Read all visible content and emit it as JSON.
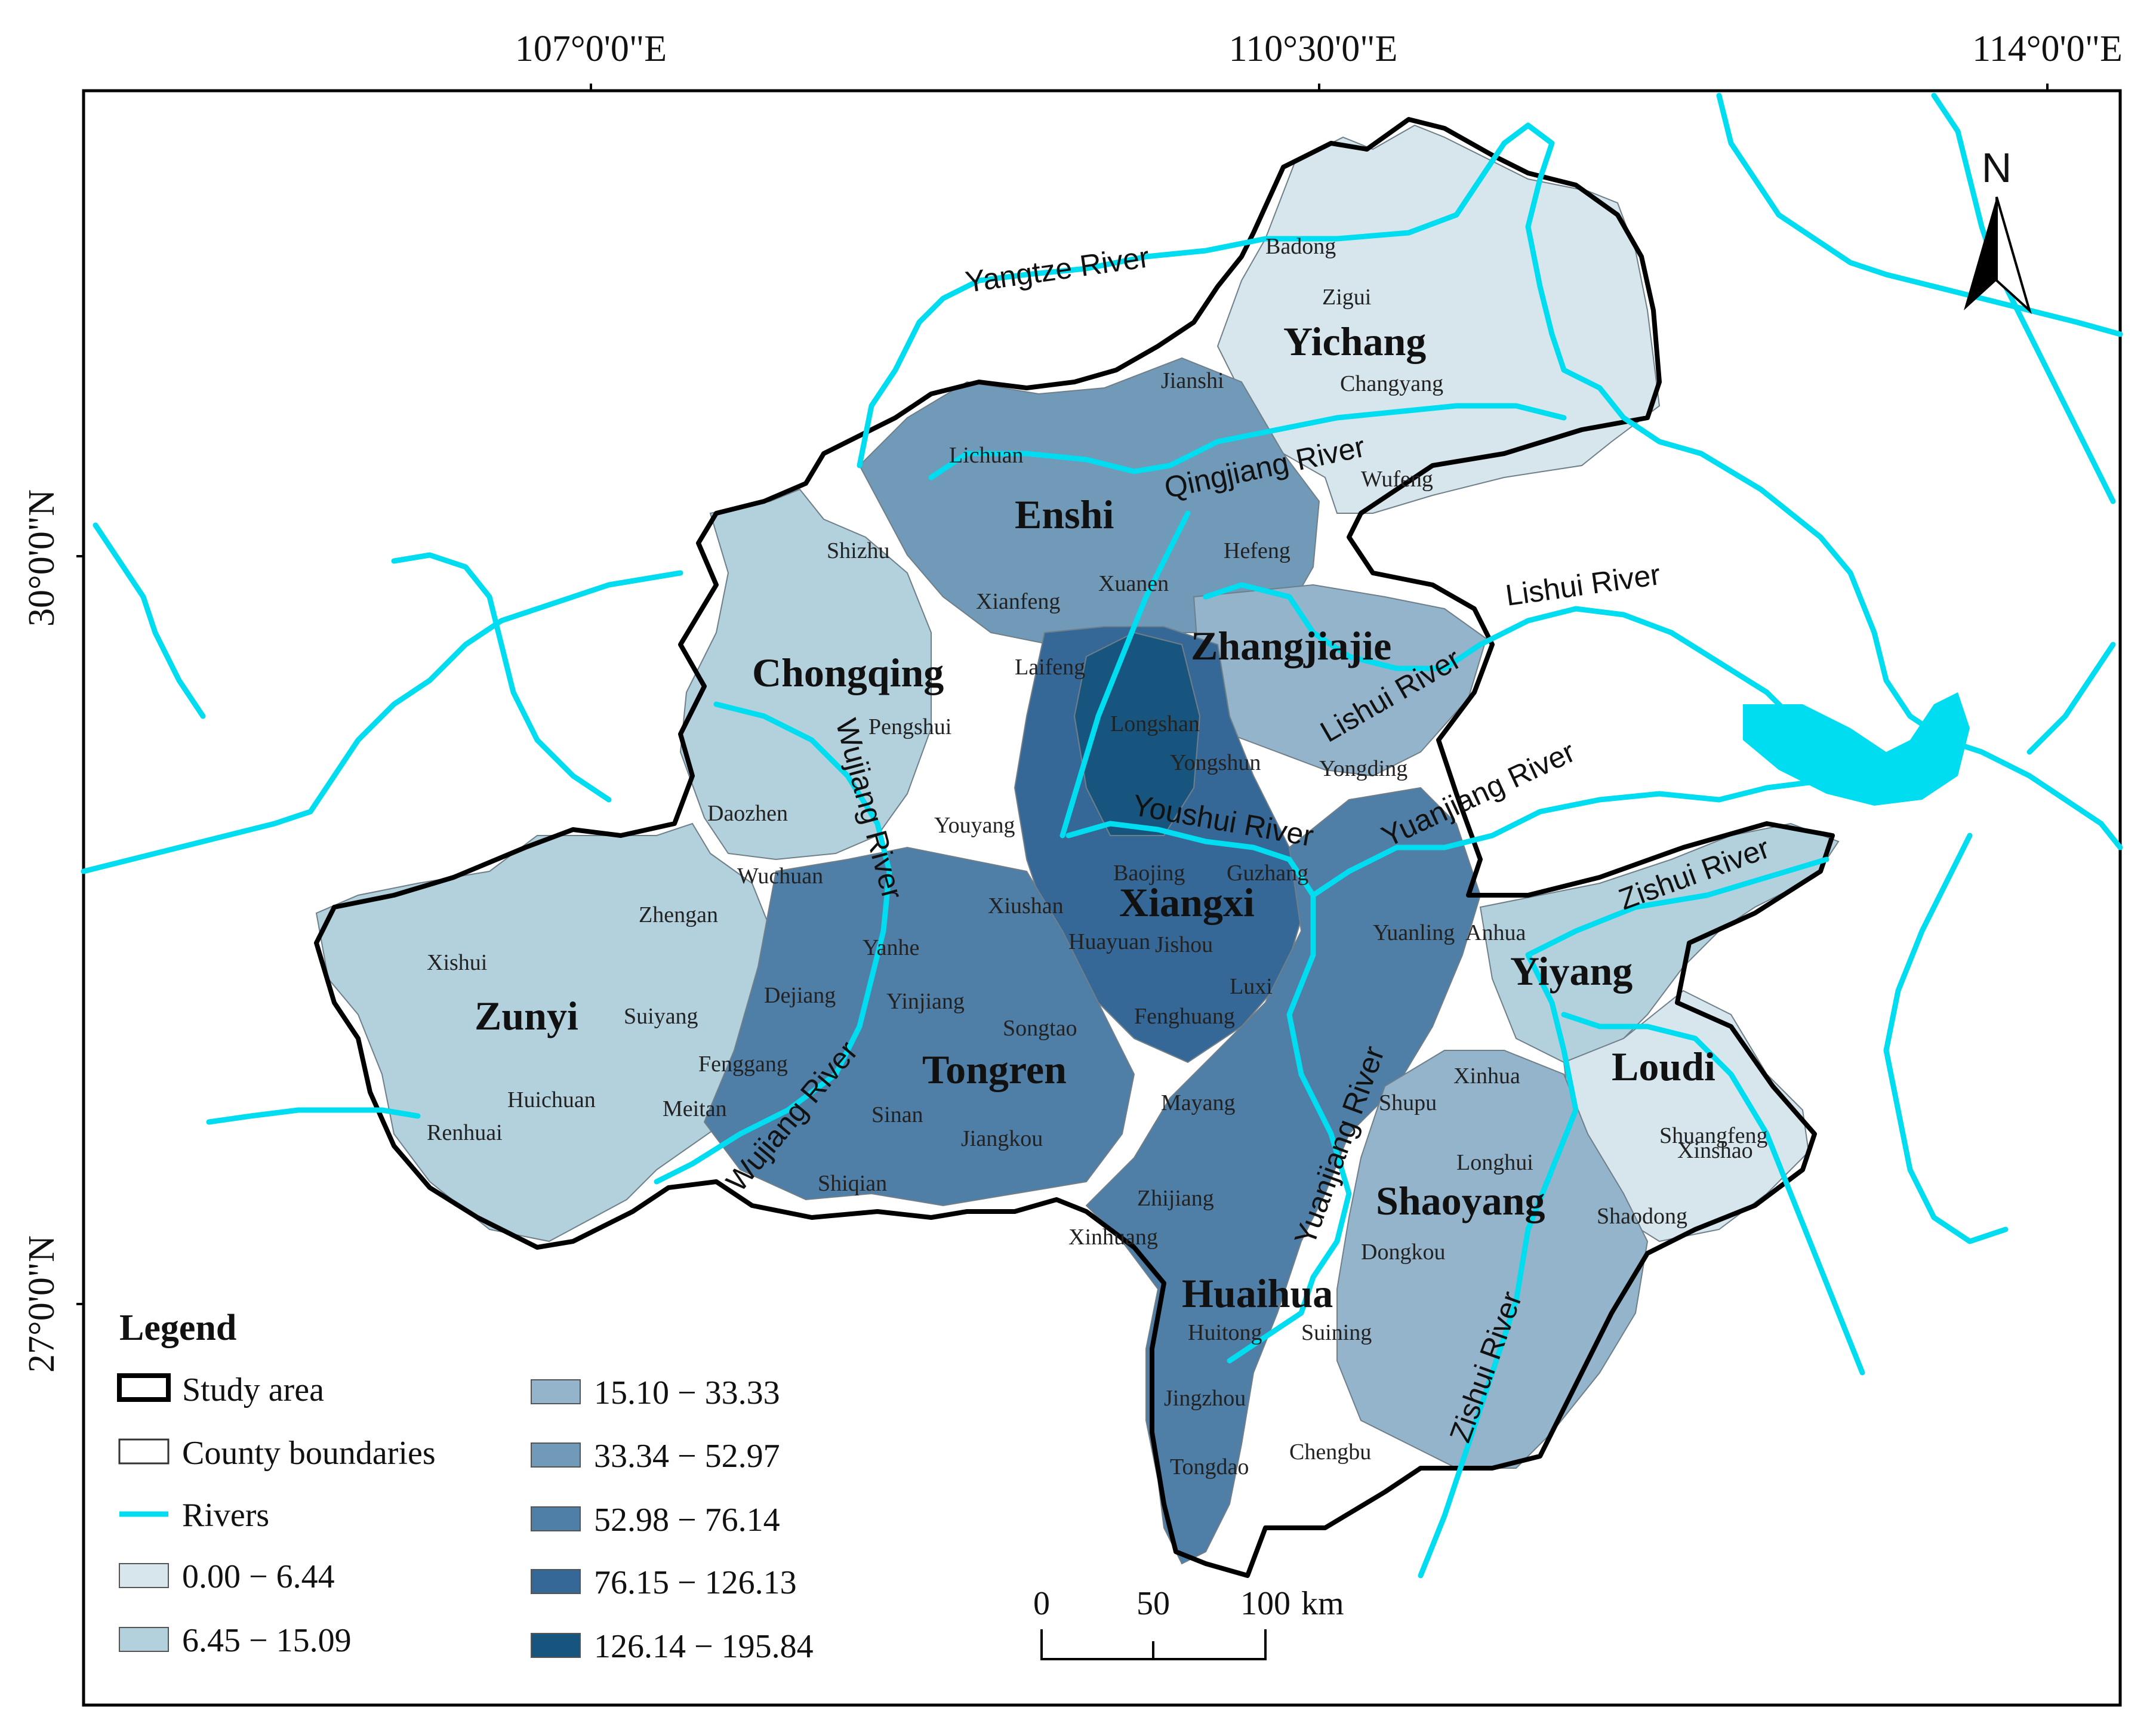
{
  "graticule": {
    "lon": [
      "107°0'0\"E",
      "110°30'0\"E",
      "114°0'0\"E"
    ],
    "lat": [
      "30°0'0\"N",
      "27°0'0\"N"
    ]
  },
  "north_label": "N",
  "cities": [
    {
      "name": "Yichang"
    },
    {
      "name": "Enshi"
    },
    {
      "name": "Zhangjiajie"
    },
    {
      "name": "Chongqing"
    },
    {
      "name": "Xiangxi"
    },
    {
      "name": "Zunyi"
    },
    {
      "name": "Tongren"
    },
    {
      "name": "Yiyang"
    },
    {
      "name": "Loudi"
    },
    {
      "name": "Shaoyang"
    },
    {
      "name": "Huaihua"
    }
  ],
  "counties": [
    "Badong",
    "Zigui",
    "Jianshi",
    "Changyang",
    "Lichuan",
    "Wufeng",
    "Shizhu",
    "Hefeng",
    "Xianfeng",
    "Xuanen",
    "Laifeng",
    "Longshan",
    "Pengshui",
    "Yongshun",
    "Yongding",
    "Daozhen",
    "Youyang",
    "Baojing",
    "Guzhang",
    "Wuchuan",
    "Zhengan",
    "Xiushan",
    "Huayuan",
    "Jishou",
    "Yuanling",
    "Anhua",
    "Xishui",
    "Yanhe",
    "Luxi",
    "Dejiang",
    "Yinjiang",
    "Suiyang",
    "Songtao",
    "Fenghuang",
    "Fenggang",
    "Xinhua",
    "Huichuan",
    "Meitan",
    "Mayang",
    "Shupu",
    "Renhuai",
    "Sinan",
    "Jiangkou",
    "Xinshao",
    "Shuangfeng",
    "Longhui",
    "Shiqian",
    "Zhijiang",
    "Shaodong",
    "Xinhuang",
    "Dongkou",
    "Huitong",
    "Suining",
    "Jingzhou",
    "Chengbu",
    "Tongdao"
  ],
  "rivers": [
    "Yangtze River",
    "Qingjiang River",
    "Lishui River",
    "Lishui River",
    "Youshui River",
    "Yuanjiang River",
    "Zishui River",
    "Wujiang River",
    "Wujiang River",
    "Yuanjiang River",
    "Zishui River"
  ],
  "legend": {
    "title": "Legend",
    "items": [
      "Study area",
      "County boundaries",
      "Rivers"
    ],
    "classes": [
      {
        "label": "0.00 − 6.44",
        "color": "#d6e6ec"
      },
      {
        "label": "6.45 − 15.09",
        "color": "#b3d0dd"
      },
      {
        "label": "15.10 − 33.33",
        "color": "#93b4cb"
      },
      {
        "label": "33.34 − 52.97",
        "color": "#7199b8"
      },
      {
        "label": "52.98 − 76.14",
        "color": "#4f7ea6"
      },
      {
        "label": "76.15 − 126.13",
        "color": "#356896"
      },
      {
        "label": "126.14 − 195.84",
        "color": "#18557e"
      }
    ]
  },
  "scale_bar": {
    "ticks": [
      "0",
      "50",
      "100"
    ],
    "unit": "km"
  },
  "colors": {
    "river": "#00dcf0",
    "boundary": "#000000"
  }
}
